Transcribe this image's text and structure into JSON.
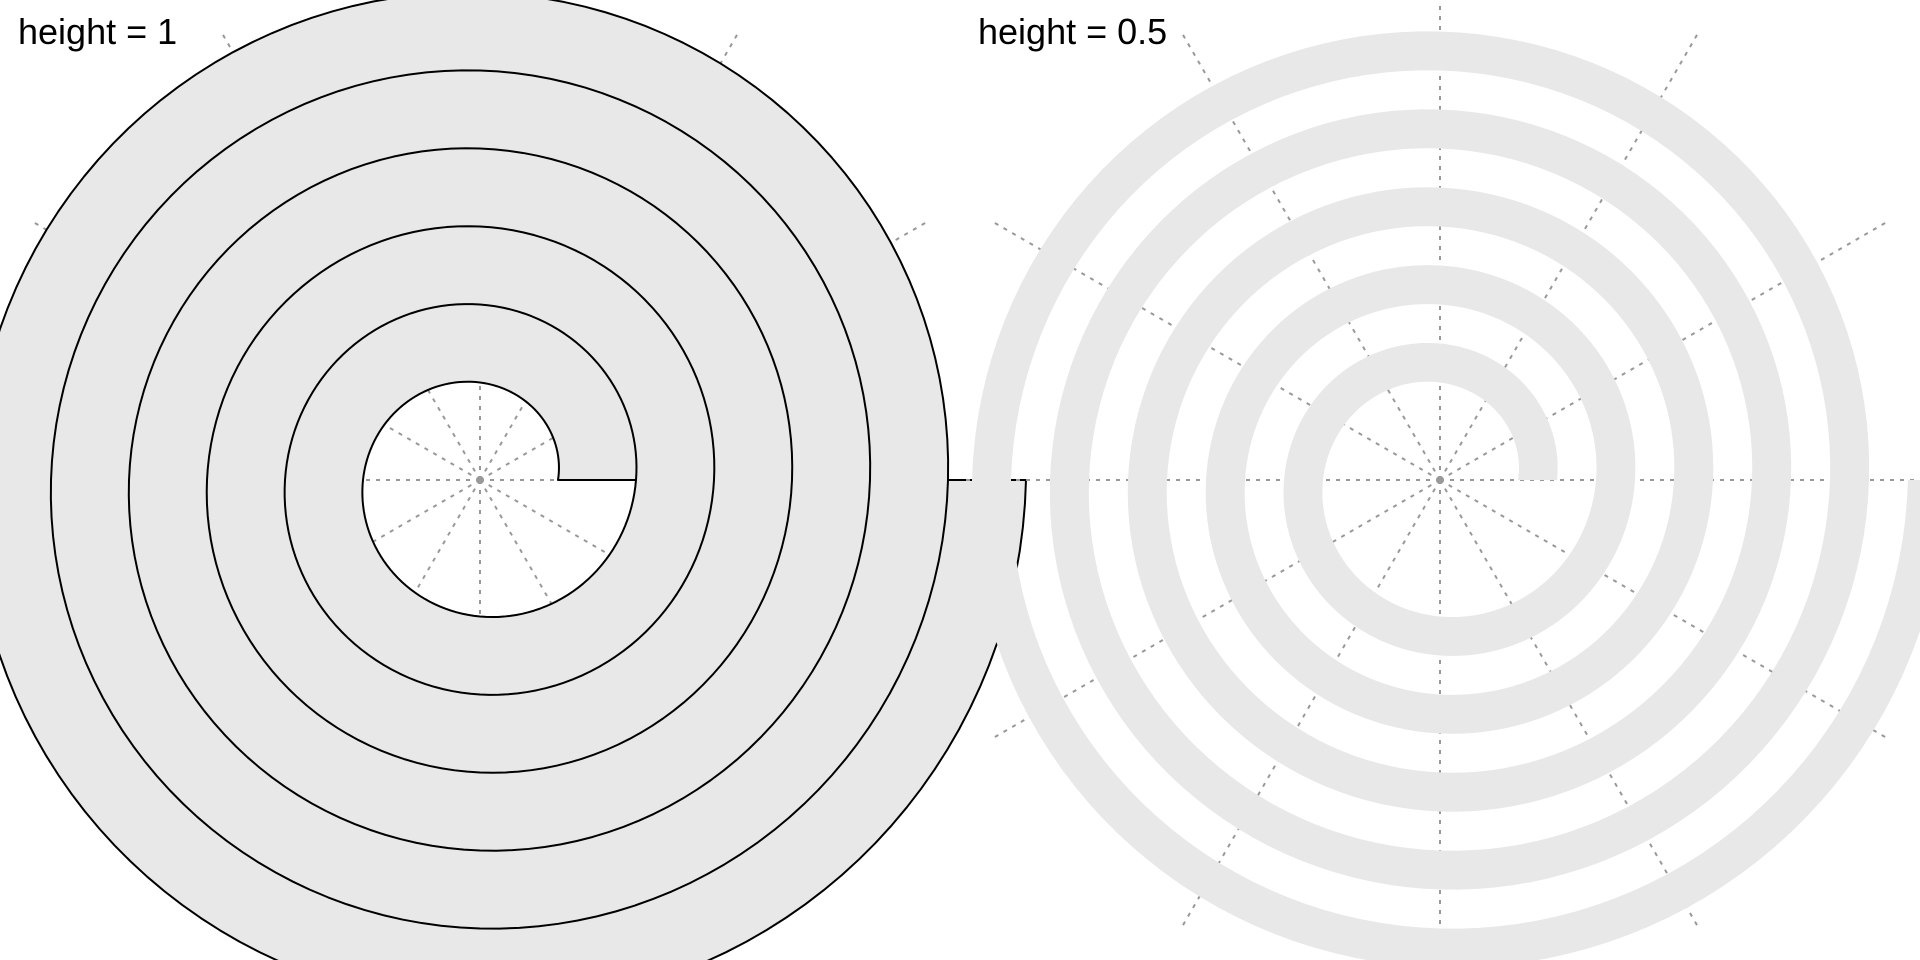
{
  "panels": [
    {
      "label": "height = 1",
      "band_height": 1,
      "turns": 5,
      "fill_color": "#e8e8e8",
      "outline_color": "#000000",
      "outlined": true
    },
    {
      "label": "height = 0.5",
      "band_height": 0.5,
      "turns": 5,
      "fill_color": "#e8e8e8",
      "outline_color": "none",
      "outlined": false
    }
  ],
  "grid": {
    "spoke_count": 12,
    "line_color": "#999999",
    "style": "dashed"
  }
}
